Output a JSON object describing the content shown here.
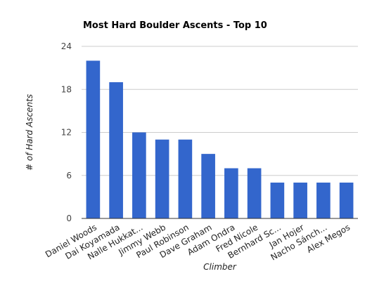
{
  "chart_data": {
    "type": "bar",
    "title": "Most Hard Boulder Ascents - Top 10",
    "xlabel": "Climber",
    "ylabel": "# of Hard Ascents",
    "ylim": [
      0,
      24
    ],
    "yticks": [
      0,
      6,
      12,
      18,
      24
    ],
    "grid": true,
    "legend": "none",
    "categories": [
      "Daniel Woods",
      "Dai Koyamada",
      "Nalle Hukkat...",
      "Jimmy Webb",
      "Paul Robinson",
      "Dave Graham",
      "Adam Ondra",
      "Fred Nicole",
      "Bernhard Sc...",
      "Jan Hojer",
      "Nacho Sánch...",
      "Alex Megos"
    ],
    "values": [
      22,
      19,
      12,
      11,
      11,
      9,
      7,
      7,
      5,
      5,
      5,
      5
    ],
    "bar_color": "#3366cc"
  }
}
